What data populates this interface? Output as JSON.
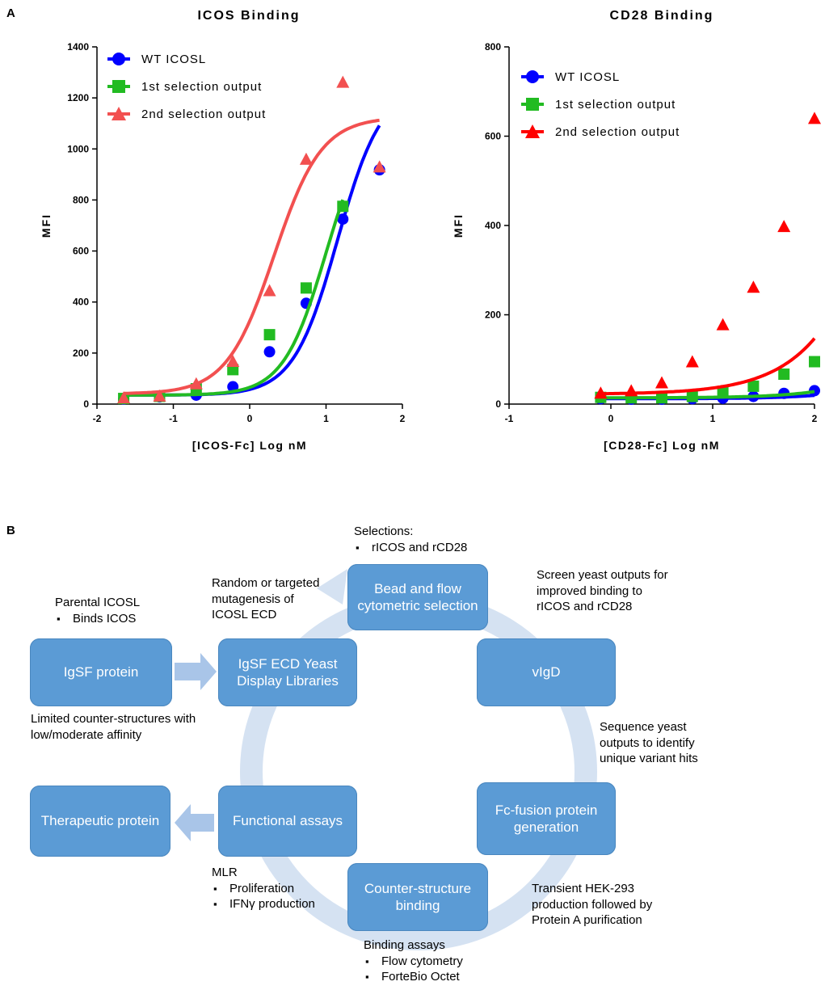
{
  "panel_a_label": "A",
  "panel_b_label": "B",
  "chart_data": [
    {
      "type": "scatter",
      "title": "ICOS Binding",
      "xlabel": "[ICOS-Fc] Log nM",
      "ylabel": "MFI",
      "xlim": [
        -2,
        2
      ],
      "ylim": [
        0,
        1400
      ],
      "xticks": [
        -2,
        -1,
        0,
        1,
        2
      ],
      "yticks": [
        0,
        200,
        400,
        600,
        800,
        1000,
        1200,
        1400
      ],
      "legend_position": "top-left",
      "series": [
        {
          "name": "WT ICOSL",
          "color": "#0000ff",
          "marker": "circle",
          "x": [
            -1.65,
            -1.18,
            -0.7,
            -0.22,
            0.26,
            0.74,
            1.22,
            1.7
          ],
          "y": [
            20,
            28,
            35,
            68,
            205,
            395,
            725,
            918
          ],
          "fit": {
            "bottom": 35,
            "top": 1250,
            "ec50": 1.15,
            "hill": 1.5,
            "xmin": -1.65,
            "xmax": 1.7
          }
        },
        {
          "name": "1st selection output",
          "color": "#22bb22",
          "marker": "square",
          "x": [
            -1.65,
            -1.18,
            -0.7,
            -0.22,
            0.26,
            0.74,
            1.22
          ],
          "y": [
            22,
            30,
            60,
            135,
            272,
            455,
            775
          ],
          "fit": {
            "bottom": 35,
            "top": 1150,
            "ec50": 1.0,
            "hill": 1.55,
            "xmin": -1.65,
            "xmax": 1.22
          }
        },
        {
          "name": "2nd selection output",
          "color": "#f25050",
          "marker": "triangle",
          "x": [
            -1.65,
            -1.18,
            -0.7,
            -0.22,
            0.26,
            0.74,
            1.22,
            1.7
          ],
          "y": [
            25,
            32,
            80,
            168,
            445,
            960,
            1262,
            930
          ],
          "fit": {
            "bottom": 40,
            "top": 1125,
            "ec50": 0.32,
            "hill": 1.4,
            "xmin": -1.65,
            "xmax": 1.7
          }
        }
      ]
    },
    {
      "type": "scatter",
      "title": "CD28 Binding",
      "xlabel": "[CD28-Fc] Log nM",
      "ylabel": "MFI",
      "xlim": [
        -1,
        2
      ],
      "ylim": [
        0,
        800
      ],
      "xticks": [
        -1,
        0,
        1,
        2
      ],
      "yticks": [
        0,
        200,
        400,
        600,
        800
      ],
      "legend_position": "top-left",
      "series": [
        {
          "name": "WT ICOSL",
          "color": "#0000ff",
          "marker": "circle",
          "x": [
            -0.1,
            0.2,
            0.5,
            0.8,
            1.1,
            1.4,
            1.7,
            2.0
          ],
          "y": [
            12,
            11,
            11,
            12,
            13,
            17,
            24,
            30
          ],
          "fit": {
            "bottom": 12,
            "top": 115,
            "ec50": 3.0,
            "hill": 1.1,
            "xmin": -0.1,
            "xmax": 2.0
          }
        },
        {
          "name": "1st selection output",
          "color": "#22bb22",
          "marker": "square",
          "x": [
            -0.1,
            0.2,
            0.5,
            0.8,
            1.1,
            1.4,
            1.7,
            2.0
          ],
          "y": [
            15,
            14,
            14,
            17,
            27,
            40,
            67,
            95
          ],
          "fit": {
            "bottom": 14,
            "top": 700,
            "ec50": 3.6,
            "hill": 1.05,
            "xmin": -0.1,
            "xmax": 2.0
          }
        },
        {
          "name": "2nd selection output",
          "color": "#ff0000",
          "marker": "triangle",
          "x": [
            -0.1,
            0.2,
            0.5,
            0.8,
            1.1,
            1.4,
            1.7,
            2.0
          ],
          "y": [
            25,
            30,
            48,
            95,
            178,
            262,
            398,
            640
          ],
          "fit": {
            "bottom": 22,
            "top": 3000,
            "ec50": 3.4,
            "hill": 0.97,
            "xmin": -0.1,
            "xmax": 2.0
          }
        }
      ]
    }
  ],
  "workflow": {
    "boxes": {
      "igsf_protein": "IgSF protein",
      "yeast_display": "IgSF ECD Yeast Display Libraries",
      "bead_selection": "Bead and flow cytometric selection",
      "vigd": "vIgD",
      "fc_fusion": "Fc-fusion protein generation",
      "counter_binding": "Counter-structure binding",
      "functional_assays": "Functional assays",
      "therapeutic": "Therapeutic protein"
    },
    "notes": {
      "parental_title": "Parental ICOSL",
      "parental_items": [
        "Binds ICOS"
      ],
      "limited": "Limited counter-structures with low/moderate affinity",
      "mutagenesis": "Random or targeted mutagenesis of ICOSL ECD",
      "selections_title": "Selections:",
      "selections_items": [
        "rICOS and rCD28"
      ],
      "screen": "Screen yeast outputs for improved binding to rICOS and rCD28",
      "sequence": "Sequence yeast outputs to identify unique variant hits",
      "transient": "Transient HEK-293 production followed by Protein A purification",
      "binding_title": "Binding assays",
      "binding_items": [
        "Flow cytometry",
        "ForteBio Octet"
      ],
      "mlr_title": "MLR",
      "mlr_items": [
        "Proliferation",
        "IFNγ production"
      ]
    }
  }
}
